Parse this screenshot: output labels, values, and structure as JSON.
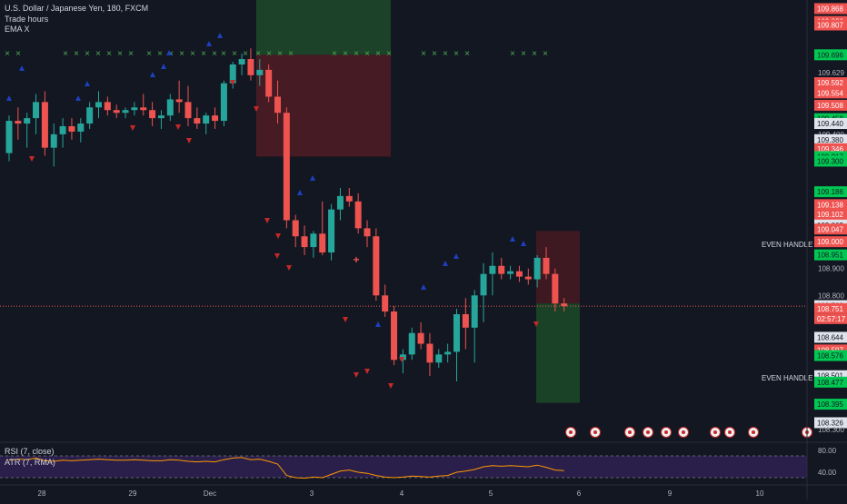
{
  "legend": {
    "symbol": "U.S. Dollar / Japanese Yen, 180, FXCM",
    "study1": "Trade hours",
    "study2": "EMA X"
  },
  "rsi_legend": {
    "rsi": "RSI (7, close)",
    "atr": "ATR (7, RMA)"
  },
  "colors": {
    "background": "#131722",
    "up": "#26a69a",
    "down": "#ef5350",
    "signal_x": "#4caf50",
    "sell_marker": "#c62828",
    "buy_marker": "#1e3fbf",
    "last_price_line": "#ef5350",
    "rsi_band": "#2a1f4a",
    "rsi_line": "#ff9800"
  },
  "chart_data": [
    {
      "type": "candlestick",
      "title": "U.S. Dollar / Japanese Yen, 180, FXCM",
      "x_tick_labels": [
        "28",
        "29",
        "Dec",
        "3",
        "4",
        "5",
        "6",
        "9",
        "10"
      ],
      "y_tick_labels": [
        "109.868",
        "109.820",
        "109.807",
        "109.696",
        "109.629",
        "109.592",
        "109.554",
        "109.508",
        "109.458",
        "109.440",
        "109.400",
        "109.380",
        "109.346",
        "109.317",
        "109.300",
        "109.186",
        "109.138",
        "109.102",
        "109.062",
        "109.047",
        "109.000",
        "108.951",
        "108.900",
        "108.800",
        "108.762",
        "108.751",
        "108.644",
        "108.597",
        "108.576",
        "108.501",
        "108.477",
        "108.395",
        "108.326",
        "108.300"
      ],
      "ylim": [
        108.26,
        109.9
      ],
      "grid": false,
      "candles": [
        [
          109.33,
          109.47,
          109.3,
          109.45
        ],
        [
          109.45,
          109.5,
          109.38,
          109.44
        ],
        [
          109.44,
          109.48,
          109.35,
          109.46
        ],
        [
          109.46,
          109.55,
          109.4,
          109.52
        ],
        [
          109.52,
          109.56,
          109.32,
          109.35
        ],
        [
          109.35,
          109.44,
          109.28,
          109.4
        ],
        [
          109.4,
          109.46,
          109.35,
          109.43
        ],
        [
          109.43,
          109.46,
          109.38,
          109.41
        ],
        [
          109.41,
          109.46,
          109.37,
          109.44
        ],
        [
          109.44,
          109.52,
          109.42,
          109.5
        ],
        [
          109.5,
          109.56,
          109.46,
          109.52
        ],
        [
          109.52,
          109.54,
          109.47,
          109.49
        ],
        [
          109.49,
          109.51,
          109.46,
          109.48
        ],
        [
          109.48,
          109.5,
          109.46,
          109.49
        ],
        [
          109.49,
          109.52,
          109.47,
          109.5
        ],
        [
          109.5,
          109.55,
          109.47,
          109.49
        ],
        [
          109.49,
          109.52,
          109.43,
          109.46
        ],
        [
          109.46,
          109.49,
          109.42,
          109.47
        ],
        [
          109.47,
          109.55,
          109.45,
          109.53
        ],
        [
          109.53,
          109.6,
          109.48,
          109.52
        ],
        [
          109.52,
          109.58,
          109.43,
          109.46
        ],
        [
          109.46,
          109.5,
          109.42,
          109.44
        ],
        [
          109.44,
          109.48,
          109.4,
          109.47
        ],
        [
          109.47,
          109.5,
          109.42,
          109.45
        ],
        [
          109.45,
          109.6,
          109.43,
          109.59
        ],
        [
          109.59,
          109.67,
          109.57,
          109.66
        ],
        [
          109.66,
          109.7,
          109.62,
          109.68
        ],
        [
          109.68,
          109.72,
          109.6,
          109.62
        ],
        [
          109.62,
          109.68,
          109.58,
          109.64
        ],
        [
          109.64,
          109.66,
          109.52,
          109.54
        ],
        [
          109.54,
          109.6,
          109.44,
          109.48
        ],
        [
          109.48,
          109.5,
          109.05,
          109.08
        ],
        [
          109.08,
          109.1,
          108.98,
          109.02
        ],
        [
          109.02,
          109.06,
          108.95,
          108.98
        ],
        [
          108.98,
          109.04,
          108.94,
          109.03
        ],
        [
          109.03,
          109.15,
          108.95,
          108.96
        ],
        [
          108.96,
          109.14,
          108.93,
          109.12
        ],
        [
          109.12,
          109.2,
          109.08,
          109.17
        ],
        [
          109.17,
          109.2,
          109.13,
          109.15
        ],
        [
          109.15,
          109.18,
          109.03,
          109.05
        ],
        [
          109.05,
          109.08,
          108.98,
          109.02
        ],
        [
          109.02,
          109.05,
          108.78,
          108.8
        ],
        [
          108.8,
          108.84,
          108.72,
          108.74
        ],
        [
          108.74,
          108.76,
          108.54,
          108.56
        ],
        [
          108.56,
          108.6,
          108.51,
          108.58
        ],
        [
          108.58,
          108.68,
          108.56,
          108.66
        ],
        [
          108.66,
          108.7,
          108.6,
          108.62
        ],
        [
          108.62,
          108.66,
          108.5,
          108.55
        ],
        [
          108.55,
          108.6,
          108.53,
          108.58
        ],
        [
          108.58,
          108.62,
          108.55,
          108.59
        ],
        [
          108.59,
          108.75,
          108.48,
          108.73
        ],
        [
          108.73,
          108.79,
          108.6,
          108.68
        ],
        [
          108.68,
          108.82,
          108.55,
          108.8
        ],
        [
          108.8,
          108.92,
          108.7,
          108.88
        ],
        [
          108.88,
          108.96,
          108.8,
          108.91
        ],
        [
          108.91,
          108.94,
          108.86,
          108.88
        ],
        [
          108.88,
          108.91,
          108.86,
          108.89
        ],
        [
          108.89,
          108.91,
          108.85,
          108.87
        ],
        [
          108.87,
          108.9,
          108.84,
          108.86
        ],
        [
          108.86,
          108.95,
          108.83,
          108.94
        ],
        [
          108.94,
          108.98,
          108.86,
          108.88
        ],
        [
          108.88,
          108.9,
          108.74,
          108.77
        ],
        [
          108.77,
          108.79,
          108.74,
          108.76
        ]
      ]
    },
    {
      "type": "line",
      "title": "RSI (7, close)",
      "y_tick_labels": [
        "80.00",
        "40.00"
      ],
      "ylim": [
        20,
        95
      ],
      "levels": [
        70,
        30
      ],
      "values": [
        62,
        64,
        63,
        66,
        61,
        60,
        62,
        61,
        62,
        63,
        64,
        63,
        62,
        62,
        63,
        62,
        61,
        61,
        63,
        62,
        60,
        59,
        60,
        59,
        63,
        66,
        67,
        63,
        64,
        60,
        55,
        34,
        30,
        29,
        31,
        30,
        36,
        42,
        44,
        40,
        38,
        34,
        31,
        30,
        31,
        33,
        32,
        31,
        33,
        34,
        40,
        42,
        45,
        50,
        52,
        51,
        52,
        51,
        50,
        53,
        49,
        44,
        43
      ]
    }
  ]
}
